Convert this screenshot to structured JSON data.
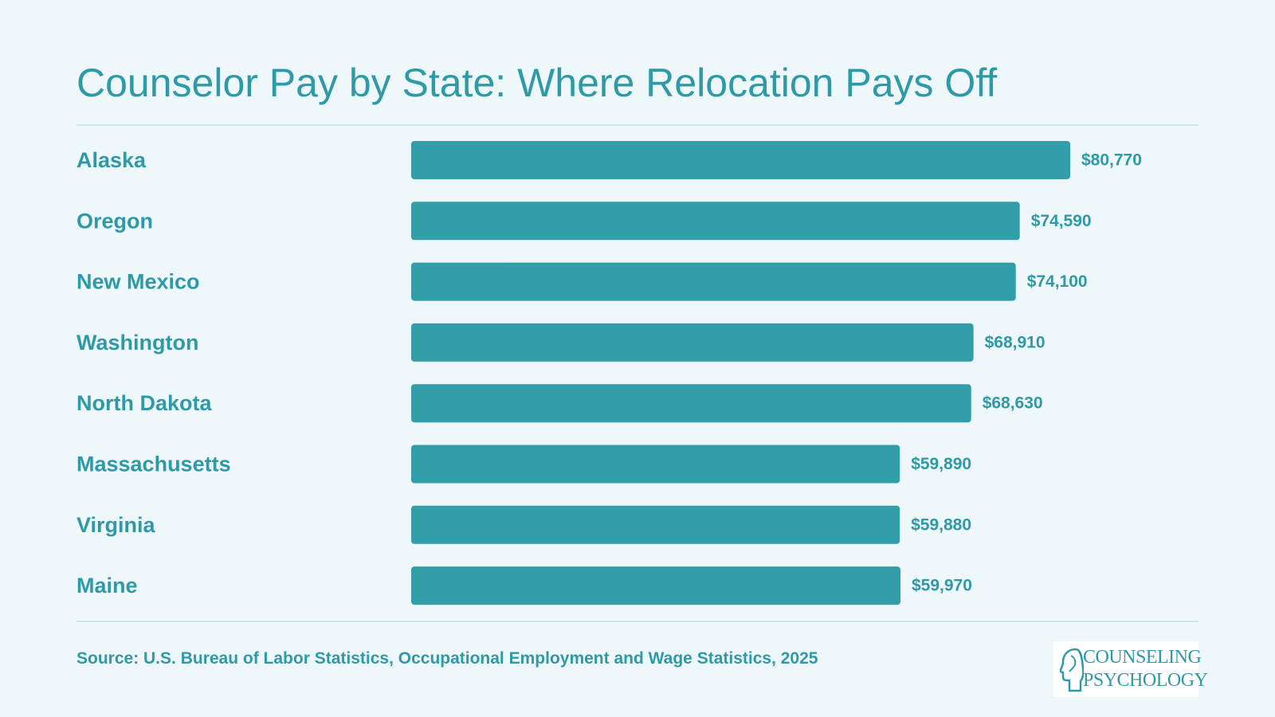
{
  "colors": {
    "background": "#eef7f9",
    "accent": "#2e9aa8",
    "bar": "#319ea9",
    "rule": "#cfe6e9"
  },
  "chart_data": {
    "type": "bar",
    "orientation": "horizontal",
    "title": "Counselor Pay by State: Where Relocation Pays Off",
    "categories": [
      "Alaska",
      "Oregon",
      "New Mexico",
      "Washington",
      "North Dakota",
      "Massachusetts",
      "Virginia",
      "Maine"
    ],
    "values": [
      80770,
      74590,
      74100,
      68910,
      68630,
      59890,
      59880,
      59970
    ],
    "value_labels": [
      "$80,770",
      "$74,590",
      "$74,100",
      "$68,910",
      "$68,630",
      "$59,890",
      "$59,880",
      "$59,970"
    ],
    "xlabel": "",
    "ylabel": "",
    "xlim": [
      0,
      80770
    ],
    "grid": false,
    "legend": "none"
  },
  "footer": {
    "source": "Source: U.S. Bureau of Labor Statistics, Occupational Employment and Wage Statistics, 2025"
  },
  "logo": {
    "line1": "COUNSELING",
    "line2": "PSYCHOLOGY",
    "icon": "head-profile-icon"
  }
}
